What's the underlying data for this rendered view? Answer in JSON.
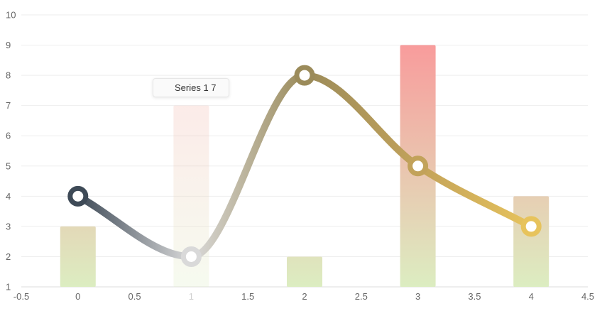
{
  "chart_data": {
    "type": "bar",
    "xlim": [
      -0.5,
      4.5
    ],
    "ylim": [
      1,
      10
    ],
    "x_ticks": [
      "-0.5",
      "0",
      "0.5",
      "1",
      "1.5",
      "2",
      "2.5",
      "3",
      "3.5",
      "4",
      "4.5"
    ],
    "y_ticks": [
      "1",
      "2",
      "3",
      "4",
      "5",
      "6",
      "7",
      "8",
      "9",
      "10"
    ],
    "grid": true,
    "series": [
      {
        "type": "bar",
        "x": [
          0,
          1,
          2,
          3,
          4
        ],
        "values": [
          3,
          7,
          2,
          9,
          4
        ],
        "gradient_colors": [
          "#f89c9c",
          "#dcedc1"
        ]
      },
      {
        "type": "line",
        "smooth": true,
        "x": [
          0,
          1,
          2,
          3,
          4
        ],
        "values": [
          4,
          2,
          8,
          5,
          3
        ],
        "point_colors": [
          "#3e4a57",
          "#d9d9d9",
          "#9b8b5a",
          "#c2a25a",
          "#e7c35c"
        ]
      }
    ],
    "tooltip": {
      "text": "Series 1 7",
      "highlighted_x": 1
    }
  }
}
